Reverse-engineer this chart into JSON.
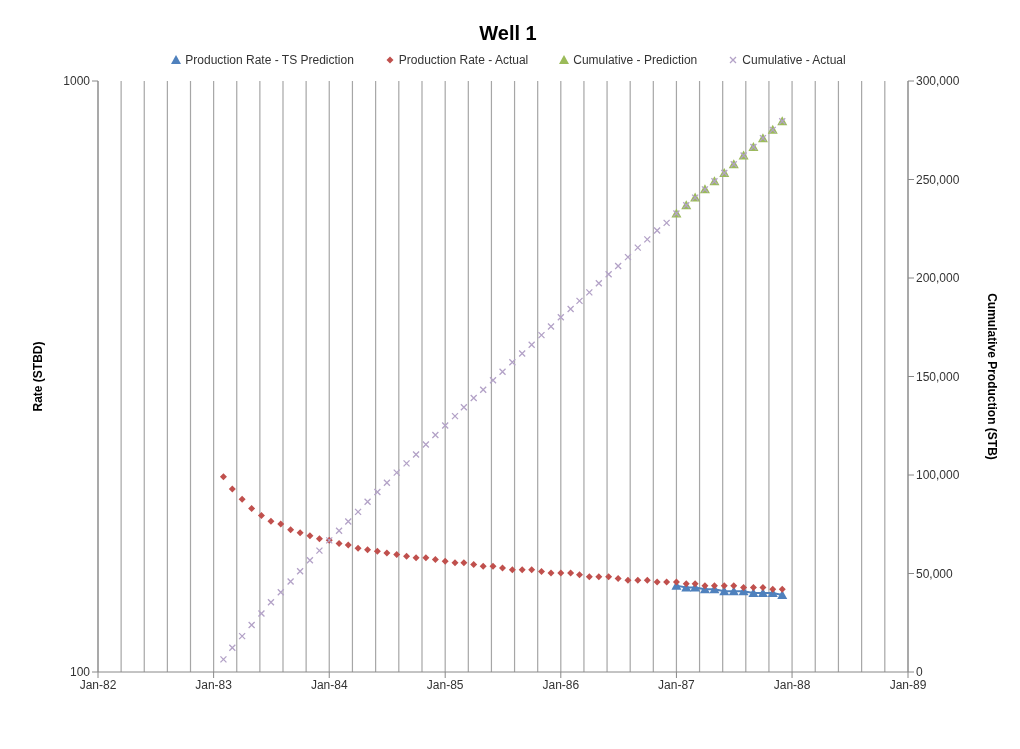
{
  "chart_data": {
    "type": "scatter",
    "title": "Well 1",
    "ylabel": "Rate (STBD)",
    "y2label": "Cumulative Production (STB)",
    "legend": "top",
    "grid": "x",
    "log": "y",
    "xlim": [
      "1982-01",
      "1989-01"
    ],
    "xticks": [
      {
        "value": "1982-01",
        "label": "Jan-82"
      },
      {
        "value": "1983-01",
        "label": "Jan-83"
      },
      {
        "value": "1984-01",
        "label": "Jan-84"
      },
      {
        "value": "1985-01",
        "label": "Jan-85"
      },
      {
        "value": "1986-01",
        "label": "Jan-86"
      },
      {
        "value": "1987-01",
        "label": "Jan-87"
      },
      {
        "value": "1988-01",
        "label": "Jan-88"
      },
      {
        "value": "1989-01",
        "label": "Jan-89"
      }
    ],
    "ylim": [
      100,
      1000
    ],
    "yticks": [
      100,
      1000
    ],
    "y2lim": [
      0,
      300000
    ],
    "y2ticks": [
      0,
      {
        "value": 50000,
        "label": "50,000"
      },
      {
        "value": 100000,
        "label": "100,000"
      },
      {
        "value": 150000,
        "label": "150,000"
      },
      {
        "value": 200000,
        "label": "200,000"
      },
      {
        "value": 250000,
        "label": "250,000"
      },
      {
        "value": 300000,
        "label": "300,000"
      }
    ],
    "series": [
      {
        "name": "Production Rate - TS Prediction",
        "type": "line",
        "marker": "triangle",
        "color": "#4f81bd",
        "x": [
          "1987-01",
          "1987-02",
          "1987-03",
          "1987-04",
          "1987-05",
          "1987-06",
          "1987-07",
          "1987-08",
          "1987-09",
          "1987-10",
          "1987-11",
          "1987-12"
        ],
        "values": [
          140,
          139,
          139,
          138,
          138,
          137,
          137,
          137,
          136,
          136,
          136,
          135
        ]
      },
      {
        "name": "Production Rate - Actual",
        "type": "scatter",
        "marker": "diamond",
        "color": "#c0504d",
        "x": [
          "1983-02",
          "1983-03",
          "1983-04",
          "1983-05",
          "1983-06",
          "1983-07",
          "1983-08",
          "1983-09",
          "1983-10",
          "1983-11",
          "1983-12",
          "1984-01",
          "1984-02",
          "1984-03",
          "1984-04",
          "1984-05",
          "1984-06",
          "1984-07",
          "1984-08",
          "1984-09",
          "1984-10",
          "1984-11",
          "1984-12",
          "1985-01",
          "1985-02",
          "1985-03",
          "1985-04",
          "1985-05",
          "1985-06",
          "1985-07",
          "1985-08",
          "1985-09",
          "1985-10",
          "1985-11",
          "1985-12",
          "1986-01",
          "1986-02",
          "1986-03",
          "1986-04",
          "1986-05",
          "1986-06",
          "1986-07",
          "1986-08",
          "1986-09",
          "1986-10",
          "1986-11",
          "1986-12",
          "1987-01",
          "1987-02",
          "1987-03",
          "1987-04",
          "1987-05",
          "1987-06",
          "1987-07",
          "1987-08",
          "1987-09",
          "1987-10",
          "1987-11",
          "1987-12"
        ],
        "values": [
          214,
          204,
          196,
          189,
          184,
          180,
          178,
          174,
          172,
          170,
          168,
          167,
          165,
          164,
          162,
          161,
          160,
          159,
          158,
          157,
          156,
          156,
          155,
          154,
          153,
          153,
          152,
          151,
          151,
          150,
          149,
          149,
          149,
          148,
          147,
          147,
          147,
          146,
          145,
          145,
          145,
          144,
          143,
          143,
          143,
          142,
          142,
          142,
          141,
          141,
          140,
          140,
          140,
          140,
          139,
          139,
          139,
          138,
          138
        ]
      },
      {
        "name": "Cumulative - Prediction",
        "type": "scatter",
        "marker": "triangle",
        "axis": "y2",
        "color": "#9bbb59",
        "x": [
          "1987-01",
          "1987-02",
          "1987-03",
          "1987-04",
          "1987-05",
          "1987-06",
          "1987-07",
          "1987-08",
          "1987-09",
          "1987-10",
          "1987-11",
          "1987-12"
        ],
        "values": [
          232700,
          236900,
          240800,
          245000,
          249100,
          253300,
          257700,
          262200,
          266500,
          271000,
          275200,
          279600
        ]
      },
      {
        "name": "Cumulative - Actual",
        "type": "scatter",
        "marker": "cross",
        "axis": "y2",
        "color": "#b3a2c7",
        "x": [
          "1983-02",
          "1983-03",
          "1983-04",
          "1983-05",
          "1983-06",
          "1983-07",
          "1983-08",
          "1983-09",
          "1983-10",
          "1983-11",
          "1983-12",
          "1984-01",
          "1984-02",
          "1984-03",
          "1984-04",
          "1984-05",
          "1984-06",
          "1984-07",
          "1984-08",
          "1984-09",
          "1984-10",
          "1984-11",
          "1984-12",
          "1985-01",
          "1985-02",
          "1985-03",
          "1985-04",
          "1985-05",
          "1985-06",
          "1985-07",
          "1985-08",
          "1985-09",
          "1985-10",
          "1985-11",
          "1985-12",
          "1986-01",
          "1986-02",
          "1986-03",
          "1986-04",
          "1986-05",
          "1986-06",
          "1986-07",
          "1986-08",
          "1986-09",
          "1986-10",
          "1986-11",
          "1986-12",
          "1987-01",
          "1987-02",
          "1987-03",
          "1987-04",
          "1987-05",
          "1987-06",
          "1987-07",
          "1987-08",
          "1987-09",
          "1987-10",
          "1987-11",
          "1987-12"
        ],
        "values": [
          6400,
          12300,
          18200,
          23900,
          29700,
          35400,
          40500,
          45900,
          51100,
          56700,
          61600,
          66800,
          71700,
          76400,
          81300,
          86400,
          91400,
          96100,
          101200,
          105900,
          110400,
          115500,
          120300,
          125100,
          129900,
          134400,
          139100,
          143300,
          148100,
          152400,
          157200,
          161700,
          166100,
          171000,
          175400,
          180100,
          184300,
          188400,
          192700,
          197300,
          201900,
          206100,
          210600,
          215400,
          219600,
          224100,
          228000,
          232700,
          236900,
          240800,
          245000,
          249100,
          253300,
          257700,
          262200,
          266500,
          271000,
          275200,
          279600
        ]
      }
    ]
  }
}
